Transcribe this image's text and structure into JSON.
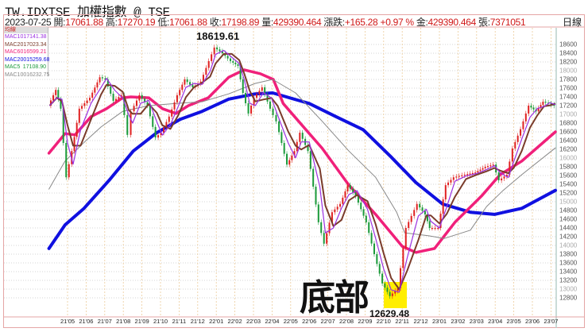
{
  "header": {
    "title": "TW.IDXTSE 加權指數 @ TSE",
    "period": "日線"
  },
  "quote": {
    "date": "2023-07-25",
    "open_label": "開:",
    "open": "17061.88",
    "high_label": "高:",
    "high": "17270.19",
    "low_label": "低:",
    "low": "17061.88",
    "close_label": "收:",
    "close": "17198.89",
    "volume_label": "量:",
    "volume": "429390.464",
    "change_label": "漲跌:",
    "change": "+165.28",
    "change_pct": "+0.97 %",
    "amount_label": "金:",
    "amount": "429390.464",
    "lots_label": "張:",
    "lots": "7371051"
  },
  "legend": {
    "title": "均線",
    "items": [
      {
        "name": "MAC10",
        "value": "17141.38",
        "color": "#9b30e0"
      },
      {
        "name": "MAC20",
        "value": "17023.34",
        "color": "#7a3b2a"
      },
      {
        "name": "MAC60",
        "value": "16599.21",
        "color": "#f0207a"
      },
      {
        "name": "MAC200",
        "value": "15259.68",
        "color": "#1010e0"
      },
      {
        "name": "MAC5",
        "value": "17108.90",
        "color": "#1a9a3a"
      },
      {
        "name": "MAC100",
        "value": "16232.75",
        "color": "#888888"
      }
    ]
  },
  "annotations": {
    "high": "18619.61",
    "low": "12629.48",
    "bottom_label": "底部",
    "highlight_color": "#ffee00"
  },
  "colors": {
    "up": "#e02020",
    "down": "#1a9a3a",
    "grid_v": "#eccb9a",
    "grid_h": "#c8c8c8"
  },
  "chart_data": {
    "type": "candlestick",
    "ylim": [
      12700,
      18750
    ],
    "y_ticks": [
      12800,
      13000,
      13200,
      13400,
      13600,
      13800,
      14000,
      14200,
      14400,
      14600,
      14800,
      15000,
      15200,
      15400,
      15600,
      15800,
      16000,
      16200,
      16400,
      16600,
      16800,
      17000,
      17200,
      17400,
      17600,
      17800,
      18000,
      18200,
      18400,
      18600
    ],
    "x_ticks": [
      "21'05",
      "21'06",
      "21'07",
      "21'08",
      "21'09",
      "21'10",
      "21'11",
      "21'12",
      "22'01",
      "22'02",
      "22'03",
      "22'04",
      "22'05",
      "22'06",
      "22'07",
      "22'08",
      "22'09",
      "22'10",
      "22'11",
      "22'12",
      "23'01",
      "23'02",
      "23'03",
      "23'04",
      "23'05",
      "23'06",
      "23'07"
    ],
    "close": [
      [
        "2021-04-02",
        17200
      ],
      [
        "2021-04-14",
        17560
      ],
      [
        "2021-04-22",
        17130
      ],
      [
        "2021-05-01",
        15560
      ],
      [
        "2021-05-10",
        16160
      ],
      [
        "2021-05-22",
        17130
      ],
      [
        "2021-06-09",
        17380
      ],
      [
        "2021-06-25",
        17850
      ],
      [
        "2021-07-04",
        17800
      ],
      [
        "2021-07-17",
        17310
      ],
      [
        "2021-07-30",
        17440
      ],
      [
        "2021-08-10",
        16530
      ],
      [
        "2021-08-16",
        17070
      ],
      [
        "2021-08-29",
        17440
      ],
      [
        "2021-09-12",
        17200
      ],
      [
        "2021-09-25",
        16470
      ],
      [
        "2021-10-04",
        16580
      ],
      [
        "2021-10-17",
        16950
      ],
      [
        "2021-10-30",
        17440
      ],
      [
        "2021-11-12",
        17800
      ],
      [
        "2021-11-25",
        17620
      ],
      [
        "2021-12-08",
        17750
      ],
      [
        "2021-12-21",
        18220
      ],
      [
        "2021-12-30",
        18530
      ],
      [
        "2022-01-13",
        18400
      ],
      [
        "2022-01-26",
        18220
      ],
      [
        "2022-02-08",
        18110
      ],
      [
        "2022-02-16",
        17490
      ],
      [
        "2022-02-25",
        17020
      ],
      [
        "2022-03-04",
        17380
      ],
      [
        "2022-03-17",
        17620
      ],
      [
        "2022-03-30",
        17130
      ],
      [
        "2022-04-10",
        16840
      ],
      [
        "2022-04-27",
        15850
      ],
      [
        "2022-05-09",
        16160
      ],
      [
        "2022-05-18",
        16580
      ],
      [
        "2022-06-01",
        16160
      ],
      [
        "2022-06-18",
        14530
      ],
      [
        "2022-06-27",
        14040
      ],
      [
        "2022-07-10",
        14760
      ],
      [
        "2022-07-23",
        14950
      ],
      [
        "2022-08-05",
        15380
      ],
      [
        "2022-08-18",
        15130
      ],
      [
        "2022-09-05",
        14530
      ],
      [
        "2022-09-18",
        13800
      ],
      [
        "2022-10-01",
        13130
      ],
      [
        "2022-10-13",
        12840
      ],
      [
        "2022-10-26",
        13020
      ],
      [
        "2022-11-09",
        14400
      ],
      [
        "2022-11-27",
        14950
      ],
      [
        "2022-12-10",
        14710
      ],
      [
        "2022-12-17",
        14400
      ],
      [
        "2023-01-01",
        14400
      ],
      [
        "2023-01-13",
        15380
      ],
      [
        "2023-01-26",
        15560
      ],
      [
        "2023-02-14",
        15620
      ],
      [
        "2023-03-01",
        15670
      ],
      [
        "2023-03-17",
        15800
      ],
      [
        "2023-03-30",
        15850
      ],
      [
        "2023-04-09",
        15490
      ],
      [
        "2023-04-22",
        15620
      ],
      [
        "2023-05-01",
        16220
      ],
      [
        "2023-05-14",
        16660
      ],
      [
        "2023-05-27",
        17200
      ],
      [
        "2023-06-09",
        17070
      ],
      [
        "2023-06-20",
        17290
      ],
      [
        "2023-06-29",
        17250
      ],
      [
        "2023-07-25",
        17198.89
      ]
    ],
    "series": [
      {
        "name": "MAC200",
        "points": [
          [
            "2021-03-31",
            13930
          ],
          [
            "2021-04-27",
            14470
          ],
          [
            "2021-05-27",
            14840
          ],
          [
            "2021-07-08",
            15490
          ],
          [
            "2021-08-17",
            16160
          ],
          [
            "2021-09-25",
            16580
          ],
          [
            "2021-11-03",
            16890
          ],
          [
            "2021-12-08",
            17070
          ],
          [
            "2022-01-21",
            17350
          ],
          [
            "2022-03-04",
            17470
          ],
          [
            "2022-04-02",
            17490
          ],
          [
            "2022-06-01",
            17250
          ],
          [
            "2022-07-14",
            16950
          ],
          [
            "2022-08-28",
            16650
          ],
          [
            "2022-10-12",
            16040
          ],
          [
            "2022-11-23",
            15440
          ],
          [
            "2023-01-06",
            14950
          ],
          [
            "2023-02-21",
            14760
          ],
          [
            "2023-03-30",
            14710
          ],
          [
            "2023-05-14",
            14850
          ],
          [
            "2023-07-25",
            15259.68
          ]
        ]
      },
      {
        "name": "MAC60",
        "points": [
          [
            "2021-03-31",
            16110
          ],
          [
            "2021-04-27",
            16560
          ],
          [
            "2021-05-13",
            16530
          ],
          [
            "2021-06-09",
            16950
          ],
          [
            "2021-07-04",
            17130
          ],
          [
            "2021-07-30",
            17380
          ],
          [
            "2021-08-13",
            17400
          ],
          [
            "2021-09-12",
            17380
          ],
          [
            "2021-10-04",
            17130
          ],
          [
            "2021-10-26",
            17020
          ],
          [
            "2021-11-16",
            17200
          ],
          [
            "2021-12-18",
            17380
          ],
          [
            "2022-01-21",
            17850
          ],
          [
            "2022-02-16",
            18020
          ],
          [
            "2022-03-12",
            17930
          ],
          [
            "2022-04-03",
            17800
          ],
          [
            "2022-04-19",
            17250
          ],
          [
            "2022-05-14",
            16840
          ],
          [
            "2022-06-22",
            16220
          ],
          [
            "2022-08-05",
            15380
          ],
          [
            "2022-09-18",
            14710
          ],
          [
            "2022-11-01",
            13980
          ],
          [
            "2022-11-23",
            13840
          ],
          [
            "2022-12-23",
            13930
          ],
          [
            "2023-01-26",
            14530
          ],
          [
            "2023-03-09",
            15130
          ],
          [
            "2023-04-09",
            15620
          ],
          [
            "2023-05-14",
            15930
          ],
          [
            "2023-07-25",
            16599.21
          ]
        ]
      },
      {
        "name": "MAC100",
        "points": [
          [
            "2021-03-31",
            15290
          ],
          [
            "2021-04-27",
            15930
          ],
          [
            "2021-05-27",
            16350
          ],
          [
            "2021-06-25",
            16710
          ],
          [
            "2021-07-30",
            17070
          ],
          [
            "2021-09-12",
            17200
          ],
          [
            "2021-10-26",
            17250
          ],
          [
            "2021-12-08",
            17290
          ],
          [
            "2022-01-21",
            17470
          ],
          [
            "2022-03-04",
            17710
          ],
          [
            "2022-04-02",
            17800
          ],
          [
            "2022-05-09",
            17490
          ],
          [
            "2022-06-22",
            16840
          ],
          [
            "2022-08-05",
            16160
          ],
          [
            "2022-09-18",
            15560
          ],
          [
            "2022-10-22",
            14760
          ],
          [
            "2022-11-05",
            14290
          ],
          [
            "2022-12-14",
            14220
          ],
          [
            "2023-01-09",
            14160
          ],
          [
            "2023-02-21",
            14350
          ],
          [
            "2023-03-17",
            14890
          ],
          [
            "2023-04-13",
            15250
          ],
          [
            "2023-05-14",
            15620
          ],
          [
            "2023-07-25",
            16232.75
          ]
        ]
      }
    ]
  }
}
